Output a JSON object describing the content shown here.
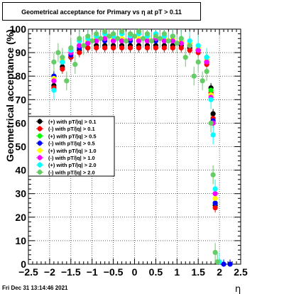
{
  "chart_data": {
    "type": "scatter",
    "title": "Geometrical acceptance for Primary vs  η at pT > 0.11",
    "xlabel": "η",
    "ylabel": "Geometrical acceptance (%)",
    "xlim": [
      -2.5,
      2.5
    ],
    "ylim": [
      0,
      100
    ],
    "x_ticks": [
      -2.5,
      -2,
      -1.5,
      -1,
      -0.5,
      0,
      0.5,
      1,
      1.5,
      2,
      2.5
    ],
    "x_tick_labels": [
      "−2.5",
      "−2",
      "−1.5",
      "−1",
      "−0.5",
      "0",
      "0.5",
      "1",
      "1.5",
      "2",
      "2.5"
    ],
    "y_ticks": [
      0,
      10,
      20,
      30,
      40,
      50,
      60,
      70,
      80,
      90,
      100
    ],
    "y_tick_labels": [
      "0",
      "10",
      "20",
      "30",
      "40",
      "50",
      "60",
      "70",
      "80",
      "90",
      "100"
    ],
    "grid": true,
    "legend_position": "center-left",
    "series": [
      {
        "name": "(+) with pT/|q| > 0.1",
        "color": "#000000",
        "x": [
          -1.9,
          -1.7,
          -1.5,
          -1.3,
          -1.1,
          -0.9,
          -0.7,
          -0.5,
          -0.3,
          -0.1,
          0.1,
          0.3,
          0.5,
          0.7,
          0.9,
          1.1,
          1.3,
          1.5,
          1.7,
          1.8,
          1.85,
          1.9
        ],
        "y": [
          76,
          84,
          88,
          91,
          92,
          93,
          93,
          93,
          93,
          93,
          93,
          93,
          93,
          93,
          93,
          93,
          92,
          91,
          86,
          75,
          64,
          25
        ]
      },
      {
        "name": "(-) with pT/|q| > 0.1",
        "color": "#ff0000",
        "x": [
          -1.9,
          -1.7,
          -1.5,
          -1.3,
          -1.1,
          -0.9,
          -0.7,
          -0.5,
          -0.3,
          -0.1,
          0.1,
          0.3,
          0.5,
          0.7,
          0.9,
          1.1,
          1.3,
          1.5,
          1.7,
          1.8,
          1.85,
          1.9
        ],
        "y": [
          75,
          83,
          88,
          90,
          92,
          92,
          92,
          92,
          92,
          92,
          92,
          92,
          92,
          92,
          92,
          92,
          91,
          90,
          85,
          73,
          62,
          24
        ]
      },
      {
        "name": "(+) with pT/|q| > 0.5",
        "color": "#00ff00",
        "x": [
          -1.9,
          -1.7,
          -1.5,
          -1.3,
          -1.1,
          -0.9,
          -0.7,
          -0.5,
          -0.3,
          -0.1,
          0.1,
          0.3,
          0.5,
          0.7,
          0.9,
          1.1,
          1.3,
          1.5,
          1.7,
          1.8,
          1.85,
          1.9
        ],
        "y": [
          80,
          86,
          90,
          93,
          95,
          96,
          96,
          95,
          96,
          95,
          96,
          95,
          96,
          96,
          95,
          95,
          94,
          92,
          88,
          74,
          60,
          26
        ]
      },
      {
        "name": "(-) with pT/|q| > 0.5",
        "color": "#0000ff",
        "x": [
          -1.9,
          -1.7,
          -1.5,
          -1.3,
          -1.1,
          -0.9,
          -0.7,
          -0.5,
          -0.3,
          -0.1,
          0.1,
          0.3,
          0.5,
          0.7,
          0.9,
          1.1,
          1.3,
          1.5,
          1.7,
          1.8,
          1.85,
          1.9,
          2.1,
          2.25
        ],
        "y": [
          80,
          86,
          89,
          92,
          94,
          95,
          95,
          95,
          95,
          95,
          95,
          95,
          95,
          95,
          95,
          94,
          93,
          91,
          87,
          72,
          61,
          26,
          0,
          0
        ]
      },
      {
        "name": "(+) with pT/|q| > 1.0",
        "color": "#ffff00",
        "x": [
          -1.9,
          -1.7,
          -1.5,
          -1.3,
          -1.1,
          -0.9,
          -0.7,
          -0.5,
          -0.3,
          -0.1,
          0.1,
          0.3,
          0.5,
          0.7,
          0.9,
          1.1,
          1.3,
          1.5,
          1.7,
          1.8,
          1.85,
          1.9
        ],
        "y": [
          79,
          87,
          90,
          93,
          95,
          96,
          96,
          96,
          96,
          96,
          96,
          96,
          96,
          96,
          96,
          95,
          94,
          92,
          87,
          72,
          60,
          28
        ]
      },
      {
        "name": "(-) with pT/|q| > 1.0",
        "color": "#ff00ff",
        "x": [
          -1.9,
          -1.7,
          -1.5,
          -1.3,
          -1.1,
          -0.9,
          -0.7,
          -0.5,
          -0.3,
          -0.1,
          0.1,
          0.3,
          0.5,
          0.7,
          0.9,
          1.1,
          1.3,
          1.5,
          1.7,
          1.8,
          1.85,
          1.9
        ],
        "y": [
          78,
          86,
          90,
          93,
          94,
          95,
          96,
          95,
          95,
          96,
          95,
          95,
          96,
          95,
          95,
          94,
          93,
          91,
          86,
          71,
          60,
          30
        ]
      },
      {
        "name": "(+) with pT/|q| > 2.0",
        "color": "#00ffff",
        "x": [
          -1.9,
          -1.7,
          -1.5,
          -1.3,
          -1.1,
          -0.9,
          -0.7,
          -0.5,
          -0.3,
          -0.1,
          0.1,
          0.3,
          0.5,
          0.7,
          0.9,
          1.1,
          1.3,
          1.5,
          1.7,
          1.8,
          1.85,
          1.9,
          2.0
        ],
        "y": [
          74,
          86,
          91,
          95,
          96,
          97,
          98,
          97,
          98,
          97,
          98,
          97,
          98,
          97,
          97,
          96,
          95,
          93,
          88,
          70,
          55,
          32,
          1
        ]
      },
      {
        "name": "(-) with pT/|q| > 2.0",
        "color": "#66cc66",
        "x": [
          -1.9,
          -1.8,
          -1.7,
          -1.6,
          -1.5,
          -1.4,
          -1.3,
          -1.2,
          -1.1,
          -1.0,
          -0.9,
          -0.8,
          -0.7,
          -0.6,
          -0.5,
          -0.4,
          -0.3,
          -0.2,
          -0.1,
          0.0,
          0.1,
          0.2,
          0.3,
          0.4,
          0.5,
          0.6,
          0.7,
          0.8,
          0.9,
          1.0,
          1.1,
          1.2,
          1.3,
          1.4,
          1.5,
          1.6,
          1.7,
          1.8,
          1.85,
          1.9,
          1.95
        ],
        "y": [
          86,
          90,
          88,
          78,
          92,
          85,
          96,
          93,
          97,
          95,
          98,
          96,
          99,
          97,
          98,
          96,
          99,
          95,
          98,
          97,
          99,
          96,
          98,
          95,
          97,
          96,
          98,
          95,
          97,
          94,
          96,
          88,
          93,
          80,
          86,
          78,
          82,
          60,
          38,
          5,
          1
        ]
      }
    ]
  },
  "timestamp": "Fri Dec 31 13:14:46 2021"
}
